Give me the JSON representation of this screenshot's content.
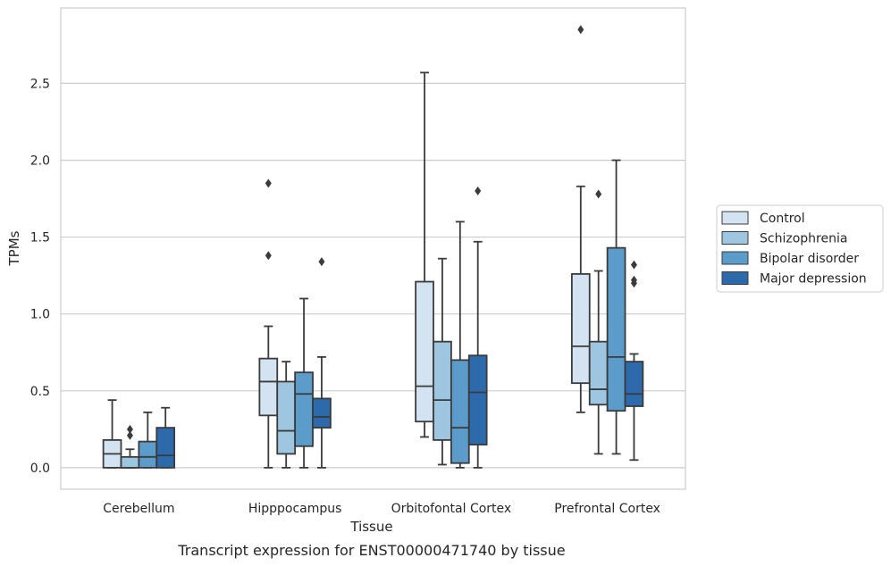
{
  "chart_data": {
    "type": "box",
    "caption": "Transcript expression for ENST00000471740 by tissue",
    "xlabel": "Tissue",
    "ylabel": "TPMs",
    "ylim": [
      -0.14,
      2.99
    ],
    "yticks": [
      "0.0",
      "0.5",
      "1.0",
      "1.5",
      "2.0",
      "2.5"
    ],
    "grid": "horizontal",
    "legend_position": "right",
    "categories": [
      "Cerebellum",
      "Hipppocampus",
      "Orbitofontal Cortex",
      "Prefrontal Cortex"
    ],
    "series": [
      {
        "name": "Control",
        "color": "#d3e3f2",
        "boxes": [
          {
            "q1": 0.0,
            "median": 0.09,
            "q3": 0.18,
            "wlo": 0.0,
            "whi": 0.44,
            "outliers": []
          },
          {
            "q1": 0.34,
            "median": 0.56,
            "q3": 0.71,
            "wlo": 0.0,
            "whi": 0.92,
            "outliers": [
              1.38,
              1.85
            ]
          },
          {
            "q1": 0.3,
            "median": 0.53,
            "q3": 1.21,
            "wlo": 0.2,
            "whi": 2.57,
            "outliers": []
          },
          {
            "q1": 0.55,
            "median": 0.79,
            "q3": 1.26,
            "wlo": 0.36,
            "whi": 1.83,
            "outliers": [
              2.85
            ]
          }
        ]
      },
      {
        "name": "Schizophrenia",
        "color": "#9dc7e0",
        "boxes": [
          {
            "q1": 0.0,
            "median": 0.0,
            "q3": 0.07,
            "wlo": 0.0,
            "whi": 0.12,
            "outliers": [
              0.21,
              0.25
            ]
          },
          {
            "q1": 0.09,
            "median": 0.24,
            "q3": 0.56,
            "wlo": 0.0,
            "whi": 0.69,
            "outliers": []
          },
          {
            "q1": 0.18,
            "median": 0.44,
            "q3": 0.82,
            "wlo": 0.02,
            "whi": 1.36,
            "outliers": []
          },
          {
            "q1": 0.41,
            "median": 0.51,
            "q3": 0.82,
            "wlo": 0.09,
            "whi": 1.28,
            "outliers": [
              1.78
            ]
          }
        ]
      },
      {
        "name": "Bipolar disorder",
        "color": "#5b9ccb",
        "boxes": [
          {
            "q1": 0.0,
            "median": 0.07,
            "q3": 0.17,
            "wlo": 0.0,
            "whi": 0.36,
            "outliers": []
          },
          {
            "q1": 0.14,
            "median": 0.48,
            "q3": 0.62,
            "wlo": 0.0,
            "whi": 1.1,
            "outliers": []
          },
          {
            "q1": 0.03,
            "median": 0.26,
            "q3": 0.7,
            "wlo": 0.0,
            "whi": 1.6,
            "outliers": []
          },
          {
            "q1": 0.37,
            "median": 0.72,
            "q3": 1.43,
            "wlo": 0.09,
            "whi": 2.0,
            "outliers": []
          }
        ]
      },
      {
        "name": "Major depression",
        "color": "#2c6aab",
        "boxes": [
          {
            "q1": 0.0,
            "median": 0.08,
            "q3": 0.26,
            "wlo": 0.0,
            "whi": 0.39,
            "outliers": []
          },
          {
            "q1": 0.26,
            "median": 0.33,
            "q3": 0.45,
            "wlo": 0.0,
            "whi": 0.72,
            "outliers": [
              1.34
            ]
          },
          {
            "q1": 0.15,
            "median": 0.49,
            "q3": 0.73,
            "wlo": 0.0,
            "whi": 1.47,
            "outliers": [
              1.8
            ]
          },
          {
            "q1": 0.4,
            "median": 0.48,
            "q3": 0.69,
            "wlo": 0.05,
            "whi": 0.74,
            "outliers": [
              1.2,
              1.22,
              1.32
            ]
          }
        ]
      }
    ]
  }
}
